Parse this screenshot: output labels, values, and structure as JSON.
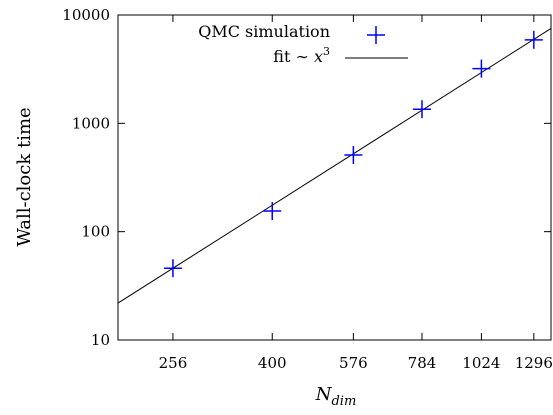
{
  "chart_data": {
    "type": "scatter",
    "xlabel": "N",
    "xlabel_sub": "dim",
    "ylabel": "Wall-clock time",
    "x_scale": "log",
    "y_scale": "log",
    "xlim": [
      200,
      1400
    ],
    "ylim": [
      10,
      10000
    ],
    "x_ticks": [
      256,
      400,
      576,
      784,
      1024,
      1296
    ],
    "x_tick_labels": [
      "256",
      "400",
      "576",
      "784",
      "1024",
      "1296"
    ],
    "y_ticks": [
      10,
      100,
      1000,
      10000
    ],
    "y_tick_labels": [
      "10",
      "100",
      "1000",
      "10000"
    ],
    "grid": false,
    "legend_position": "top-right",
    "legend": {
      "series_label": "QMC simulation",
      "fit_label_prefix": "fit ∼ ",
      "fit_label_var": "x",
      "fit_label_exp": "3"
    },
    "series": [
      {
        "name": "QMC simulation",
        "marker": "plus",
        "color": "#0000ff",
        "x": [
          256,
          400,
          576,
          784,
          1024,
          1296
        ],
        "y": [
          46,
          155,
          510,
          1350,
          3200,
          5900
        ]
      }
    ],
    "fit": {
      "name": "fit ∼ x^3",
      "color": "#000000",
      "exponent": 3,
      "coefficient": 2.74e-06
    }
  }
}
